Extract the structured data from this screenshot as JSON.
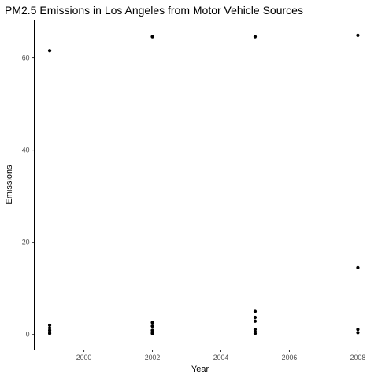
{
  "chart_data": {
    "type": "scatter",
    "title": "PM2.5 Emissions in Los Angeles from Motor Vehicle Sources",
    "xlabel": "Year",
    "ylabel": "Emissions",
    "xlim": [
      1998.55,
      2008.45
    ],
    "ylim": [
      -3.3,
      68.3
    ],
    "x_ticks": [
      2000,
      2002,
      2004,
      2006,
      2008
    ],
    "y_ticks": [
      0,
      20,
      40,
      60
    ],
    "grid": false,
    "point_color": "#000000",
    "points": [
      {
        "x": 1999,
        "y": 61.6
      },
      {
        "x": 1999,
        "y": 2.0
      },
      {
        "x": 1999,
        "y": 1.4
      },
      {
        "x": 1999,
        "y": 0.9
      },
      {
        "x": 1999,
        "y": 0.5
      },
      {
        "x": 1999,
        "y": 0.2
      },
      {
        "x": 2002,
        "y": 64.6
      },
      {
        "x": 2002,
        "y": 2.6
      },
      {
        "x": 2002,
        "y": 1.8
      },
      {
        "x": 2002,
        "y": 0.9
      },
      {
        "x": 2002,
        "y": 0.5
      },
      {
        "x": 2002,
        "y": 0.2
      },
      {
        "x": 2005,
        "y": 64.6
      },
      {
        "x": 2005,
        "y": 5.0
      },
      {
        "x": 2005,
        "y": 3.7
      },
      {
        "x": 2005,
        "y": 2.9
      },
      {
        "x": 2005,
        "y": 1.1
      },
      {
        "x": 2005,
        "y": 0.6
      },
      {
        "x": 2005,
        "y": 0.2
      },
      {
        "x": 2008,
        "y": 64.9
      },
      {
        "x": 2008,
        "y": 14.5
      },
      {
        "x": 2008,
        "y": 1.1
      },
      {
        "x": 2008,
        "y": 0.4
      }
    ]
  }
}
